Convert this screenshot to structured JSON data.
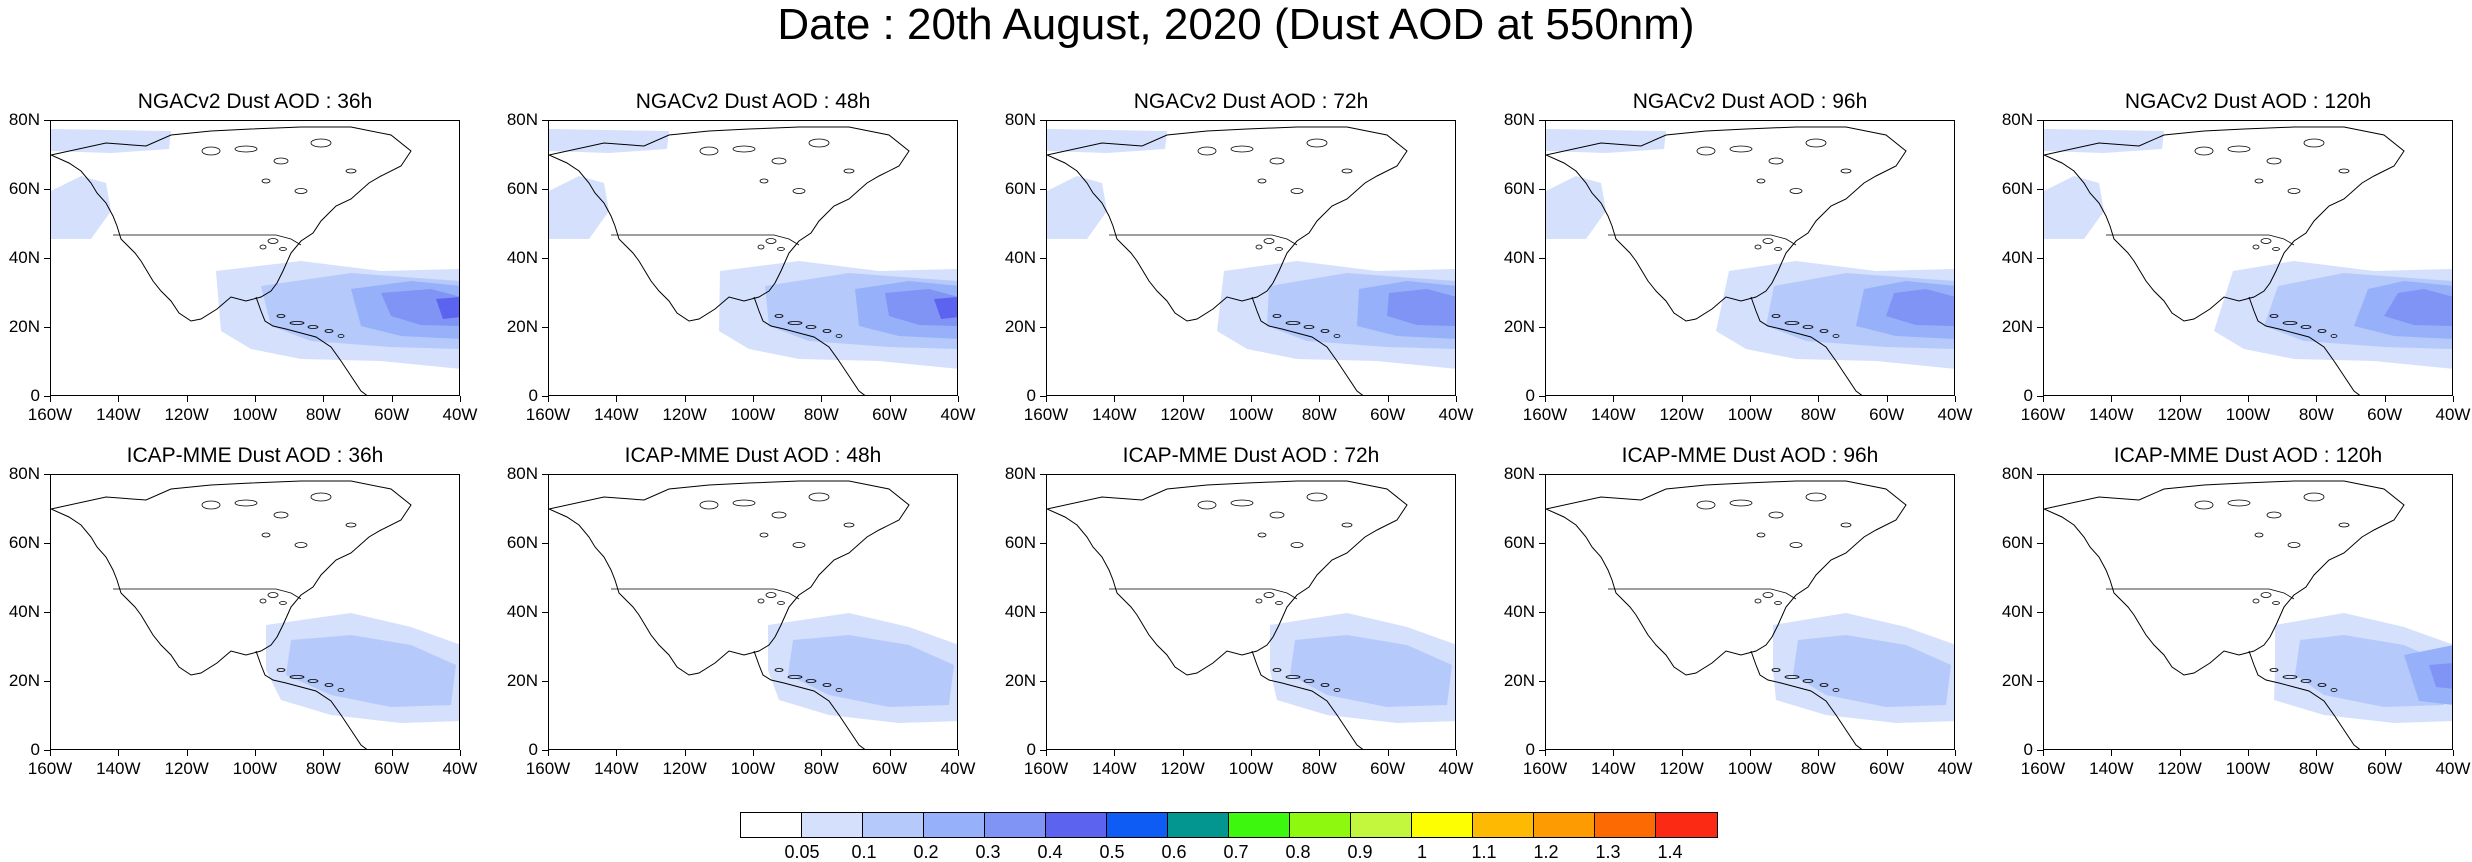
{
  "title": "Date : 20th August, 2020 (Dust AOD at 550nm)",
  "panels": [
    {
      "title": "NGACv2 Dust AOD : 36h",
      "model": "NGACv2",
      "lead": "36h"
    },
    {
      "title": "NGACv2 Dust AOD : 48h",
      "model": "NGACv2",
      "lead": "48h"
    },
    {
      "title": "NGACv2 Dust AOD : 72h",
      "model": "NGACv2",
      "lead": "72h"
    },
    {
      "title": "NGACv2 Dust AOD : 96h",
      "model": "NGACv2",
      "lead": "96h"
    },
    {
      "title": "NGACv2 Dust AOD : 120h",
      "model": "NGACv2",
      "lead": "120h"
    },
    {
      "title": "ICAP-MME Dust AOD : 36h",
      "model": "ICAP-MME",
      "lead": "36h"
    },
    {
      "title": "ICAP-MME Dust AOD : 48h",
      "model": "ICAP-MME",
      "lead": "48h"
    },
    {
      "title": "ICAP-MME Dust AOD : 72h",
      "model": "ICAP-MME",
      "lead": "72h"
    },
    {
      "title": "ICAP-MME Dust AOD : 96h",
      "model": "ICAP-MME",
      "lead": "96h"
    },
    {
      "title": "ICAP-MME Dust AOD : 120h",
      "model": "ICAP-MME",
      "lead": "120h"
    }
  ],
  "lat_labels": [
    "80N",
    "60N",
    "40N",
    "20N",
    "0"
  ],
  "lon_labels": [
    "160W",
    "140W",
    "120W",
    "100W",
    "80W",
    "60W",
    "40W"
  ],
  "colorbar": {
    "colors": [
      "#ffffff",
      "#d4e0fc",
      "#b6c9fb",
      "#96b1fa",
      "#7f94f5",
      "#5c63ee",
      "#0f5cf5",
      "#03958f",
      "#3ef70f",
      "#8ef80e",
      "#c2f73e",
      "#fefe03",
      "#feba03",
      "#fd9b03",
      "#fc6a03",
      "#fa2a14"
    ],
    "labels": [
      "0.05",
      "0.1",
      "0.2",
      "0.3",
      "0.4",
      "0.5",
      "0.6",
      "0.7",
      "0.8",
      "0.9",
      "1",
      "1.1",
      "1.2",
      "1.3",
      "1.4"
    ]
  }
}
